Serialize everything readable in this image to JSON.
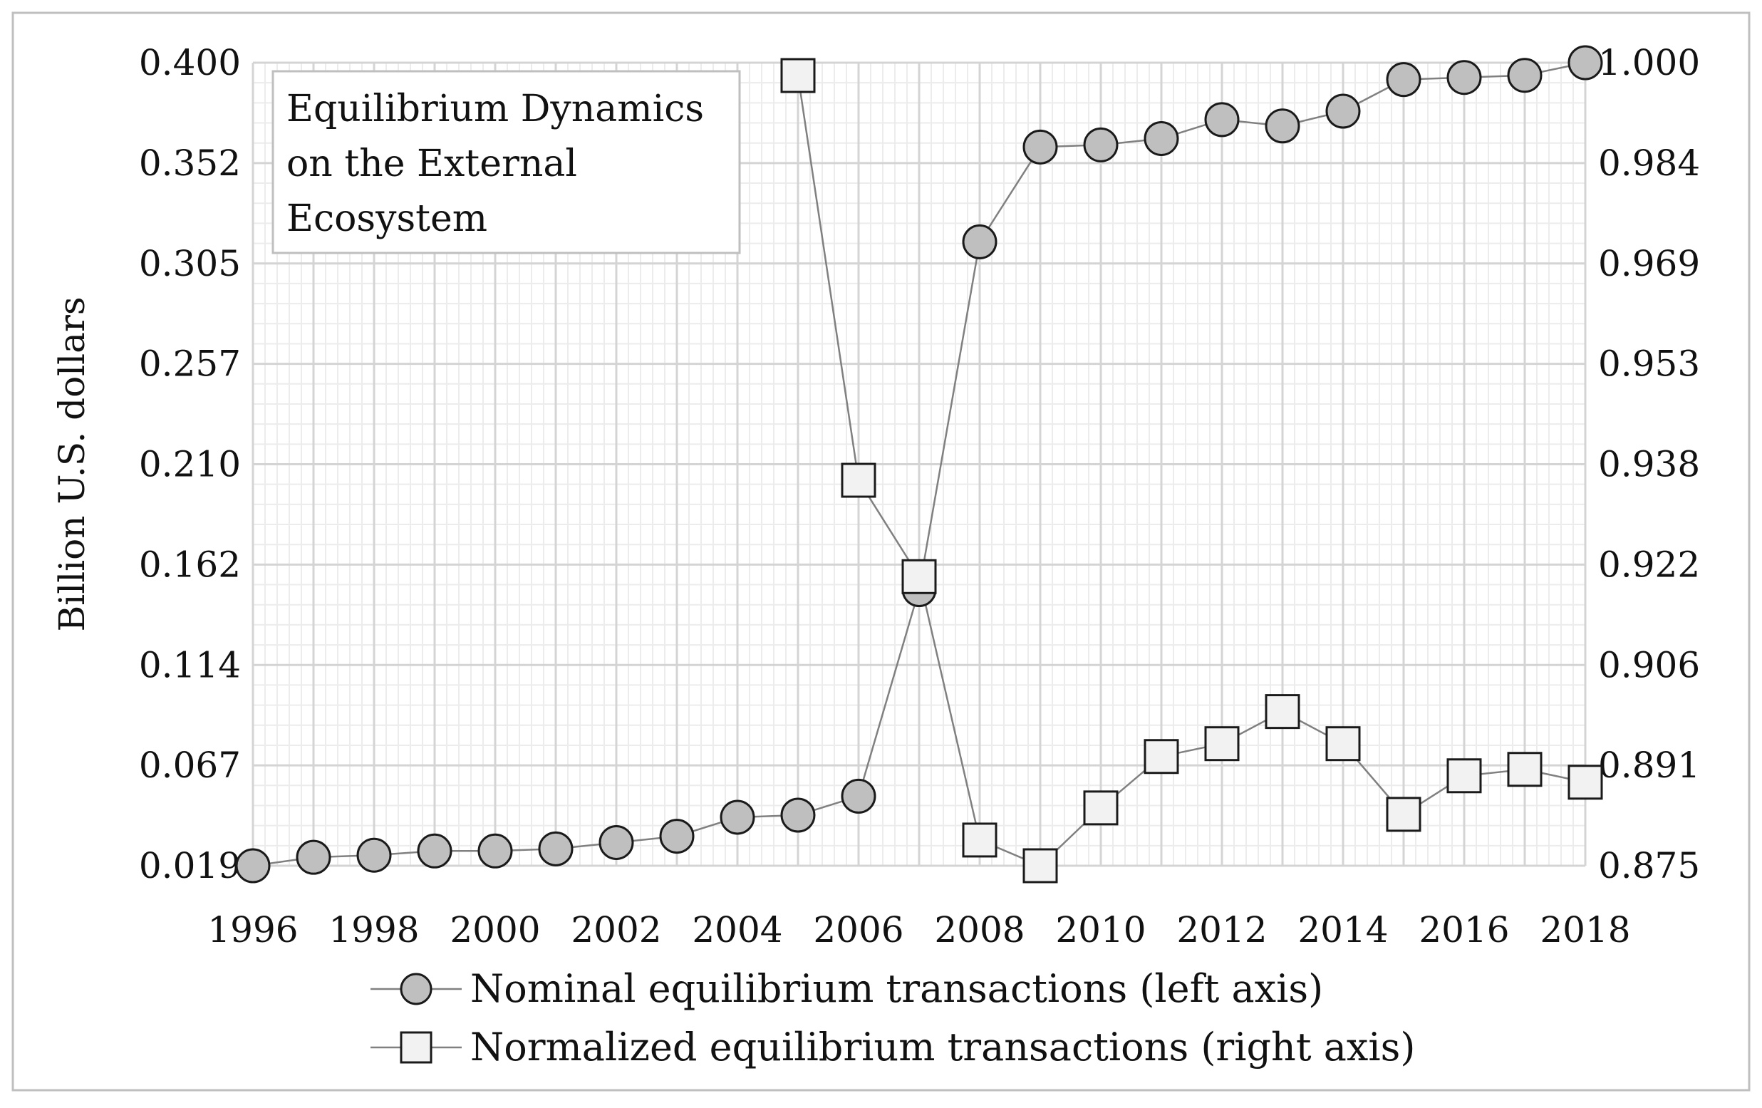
{
  "chart_data": {
    "type": "line",
    "title_lines": [
      "Equilibrium Dynamics",
      "on the External",
      "Ecosystem"
    ],
    "xlabel": "",
    "ylabel": "Billion U.S. dollars",
    "y2label": "",
    "x": [
      1996,
      1997,
      1998,
      1999,
      2000,
      2001,
      2002,
      2003,
      2004,
      2005,
      2006,
      2007,
      2008,
      2009,
      2010,
      2011,
      2012,
      2013,
      2014,
      2015,
      2016,
      2017,
      2018
    ],
    "x_ticks": [
      "1996",
      "1998",
      "2000",
      "2002",
      "2004",
      "2006",
      "2008",
      "2010",
      "2012",
      "2014",
      "2016",
      "2018"
    ],
    "y_ticks_left": [
      "0.019",
      "0.067",
      "0.114",
      "0.162",
      "0.210",
      "0.257",
      "0.305",
      "0.352",
      "0.400"
    ],
    "y_ticks_right": [
      "0.875",
      "0.891",
      "0.906",
      "0.922",
      "0.938",
      "0.953",
      "0.969",
      "0.984",
      "1.000"
    ],
    "ylim_left": [
      0.019,
      0.4
    ],
    "ylim_right": [
      0.875,
      1.0
    ],
    "grid": true,
    "legend_position": "bottom",
    "series": [
      {
        "name": "Nominal equilibrium transactions (left axis)",
        "axis": "left",
        "marker": "circle",
        "marker_color": "#bfbfbf",
        "values": [
          0.019,
          0.023,
          0.024,
          0.026,
          0.026,
          0.027,
          0.03,
          0.033,
          0.042,
          0.043,
          0.052,
          0.15,
          0.315,
          0.36,
          0.361,
          0.364,
          0.373,
          0.37,
          0.377,
          0.392,
          0.393,
          0.394,
          0.4
        ]
      },
      {
        "name": "Normalized equilibrium transactions (right axis)",
        "axis": "right",
        "marker": "square",
        "marker_color": "#f2f2f2",
        "x": [
          2005,
          2006,
          2007,
          2008,
          2009,
          2010,
          2011,
          2012,
          2013,
          2014,
          2015,
          2016,
          2017,
          2018
        ],
        "values": [
          0.998,
          0.935,
          0.92,
          0.879,
          0.875,
          0.884,
          0.892,
          0.894,
          0.899,
          0.894,
          0.883,
          0.889,
          0.89,
          0.888
        ]
      }
    ]
  }
}
